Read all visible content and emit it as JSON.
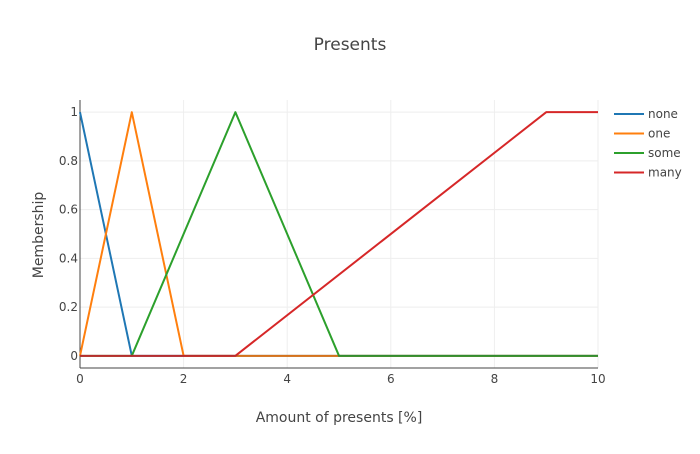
{
  "chart_data": {
    "type": "line",
    "title": "Presents",
    "xlabel": "Amount of presents [%]",
    "ylabel": "Membership",
    "xlim": [
      0,
      10
    ],
    "ylim": [
      -0.05,
      1.05
    ],
    "xticks": [
      0,
      2,
      4,
      6,
      8,
      10
    ],
    "yticks": [
      0,
      0.2,
      0.4,
      0.6,
      0.8,
      1
    ],
    "grid": true,
    "legend_position": "top-right",
    "series": [
      {
        "name": "none",
        "color": "#1f77b4",
        "x": [
          0,
          1,
          10
        ],
        "y": [
          1,
          0,
          0
        ]
      },
      {
        "name": "one",
        "color": "#ff7f0e",
        "x": [
          0,
          1,
          2,
          10
        ],
        "y": [
          0,
          1,
          0,
          0
        ]
      },
      {
        "name": "some",
        "color": "#2ca02c",
        "x": [
          0,
          1,
          3,
          5,
          10
        ],
        "y": [
          0,
          0,
          1,
          0,
          0
        ]
      },
      {
        "name": "many",
        "color": "#d62728",
        "x": [
          0,
          3,
          9,
          10
        ],
        "y": [
          0,
          0,
          1,
          1
        ]
      }
    ]
  }
}
